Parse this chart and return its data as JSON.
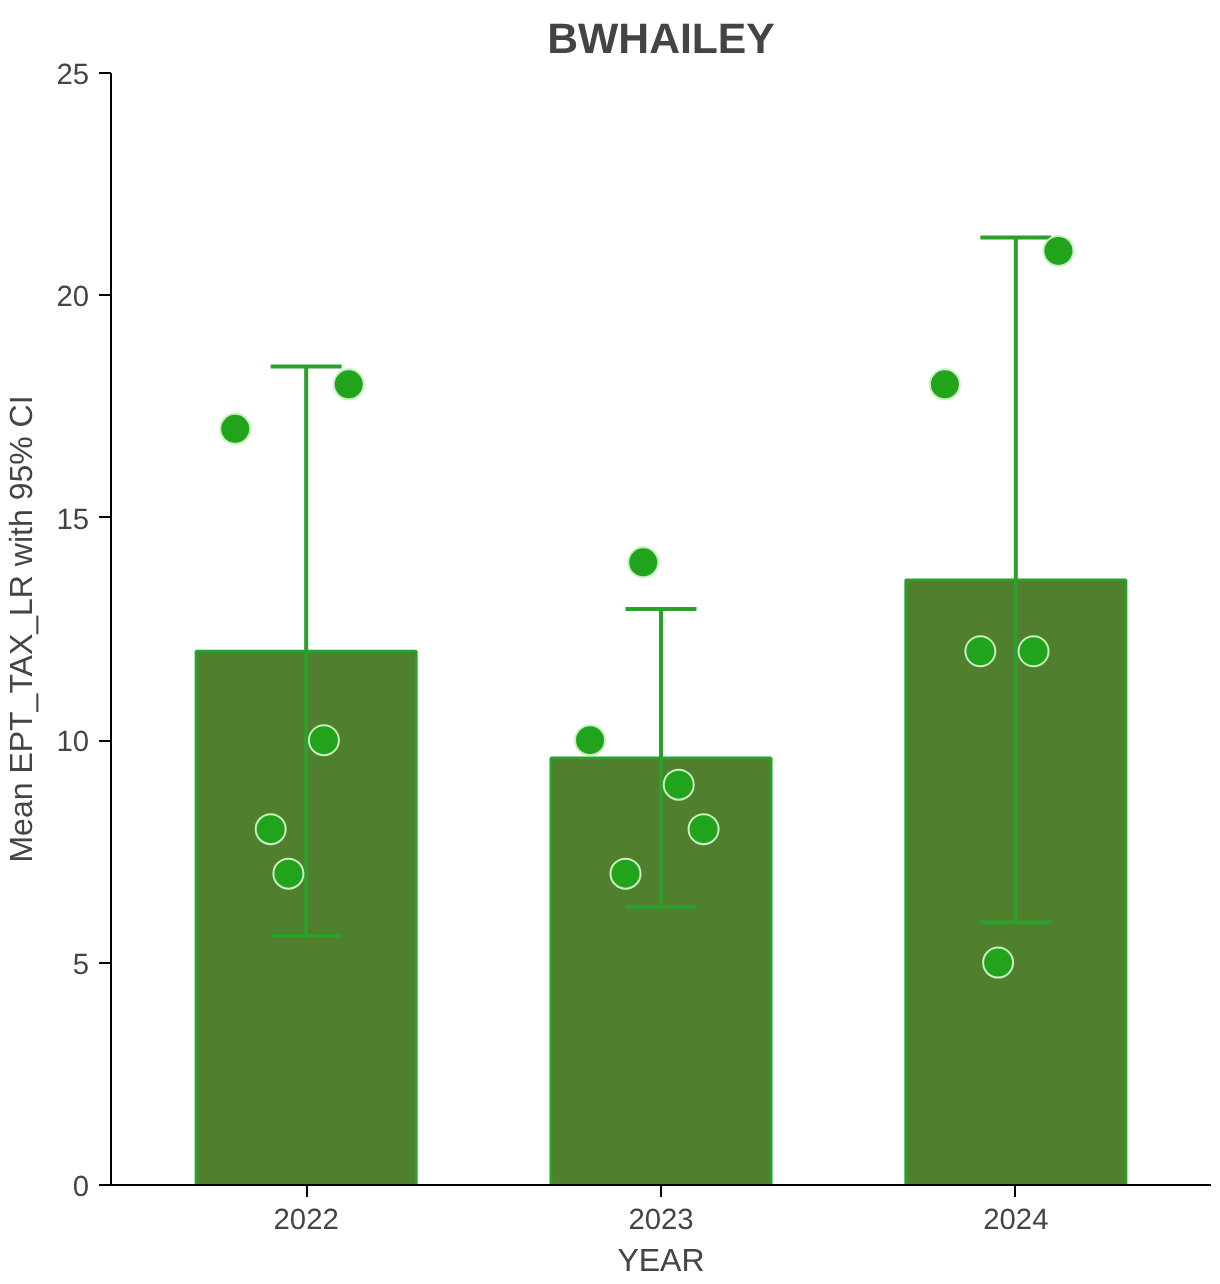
{
  "chart_data": {
    "type": "bar",
    "title": "BWHAILEY",
    "xlabel": "YEAR",
    "ylabel": "Mean EPT_TAX_LR with 95% CI",
    "categories": [
      "2022",
      "2023",
      "2024"
    ],
    "series": [
      {
        "color": "#507f2d",
        "values": [
          12,
          9.6,
          13.6
        ],
        "errors": [
          [
            5.6,
            18.4
          ],
          [
            6.25,
            12.95
          ],
          [
            5.9,
            21.3
          ]
        ]
      },
      {
        "type": "scatter",
        "color": "#22a31c",
        "values": [
          17,
          10,
          18
        ]
      },
      {
        "type": "scatter",
        "color": "#22a31c",
        "values": [
          18,
          8,
          21
        ]
      },
      {
        "type": "scatter",
        "color": "#22a31c",
        "values": [
          10,
          9,
          12
        ]
      },
      {
        "type": "scatter",
        "color": "#22a31c",
        "values": [
          8,
          7,
          12
        ]
      },
      {
        "type": "scatter",
        "color": "#22a31c",
        "values": [
          7,
          14,
          5
        ]
      }
    ],
    "ylim": [
      0,
      25
    ],
    "yticks": [
      0,
      5,
      10,
      15,
      20,
      25
    ],
    "grid": false,
    "marker": "circle"
  }
}
